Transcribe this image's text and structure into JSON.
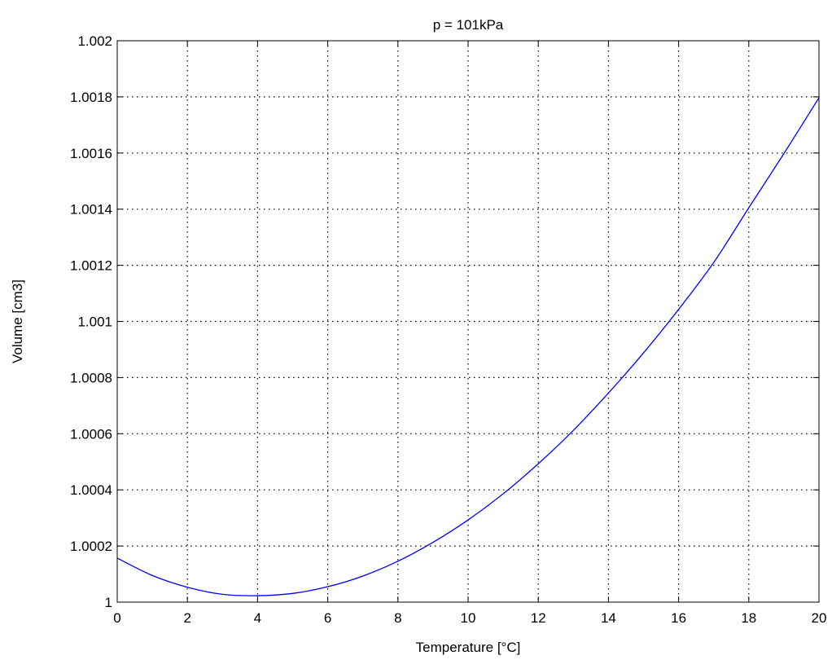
{
  "chart_data": {
    "type": "line",
    "title": "p = 101kPa",
    "xlabel": "Temperature [°C]",
    "ylabel": "Volume [cm3]",
    "xlim": [
      0,
      20
    ],
    "ylim": [
      1,
      1.002
    ],
    "x_ticks": [
      0,
      2,
      4,
      6,
      8,
      10,
      12,
      14,
      16,
      18,
      20
    ],
    "x_tick_labels": [
      "0",
      "2",
      "4",
      "6",
      "8",
      "10",
      "12",
      "14",
      "16",
      "18",
      "20"
    ],
    "y_ticks": [
      1,
      1.0002,
      1.0004,
      1.0006,
      1.0008,
      1.001,
      1.0012,
      1.0014,
      1.0016,
      1.0018,
      1.002
    ],
    "y_tick_labels": [
      "1",
      "1.0002",
      "1.0004",
      "1.0006",
      "1.0008",
      "1.001",
      "1.0012",
      "1.0014",
      "1.0016",
      "1.0018",
      "1.002"
    ],
    "grid": true,
    "legend": false,
    "series": [
      {
        "color": "#0000ff",
        "x": [
          0,
          1,
          2,
          3,
          4,
          5,
          6,
          7,
          8,
          9,
          10,
          11,
          12,
          13,
          14,
          15,
          16,
          17,
          18,
          19,
          20
        ],
        "y": [
          1.000157,
          1.000095,
          1.000053,
          1.000028,
          1.000023,
          1.000031,
          1.000055,
          1.000093,
          1.000146,
          1.000213,
          1.000293,
          1.000386,
          1.000493,
          1.000612,
          1.000745,
          1.000888,
          1.001043,
          1.00121,
          1.001405,
          1.001598,
          1.001797
        ]
      }
    ]
  }
}
